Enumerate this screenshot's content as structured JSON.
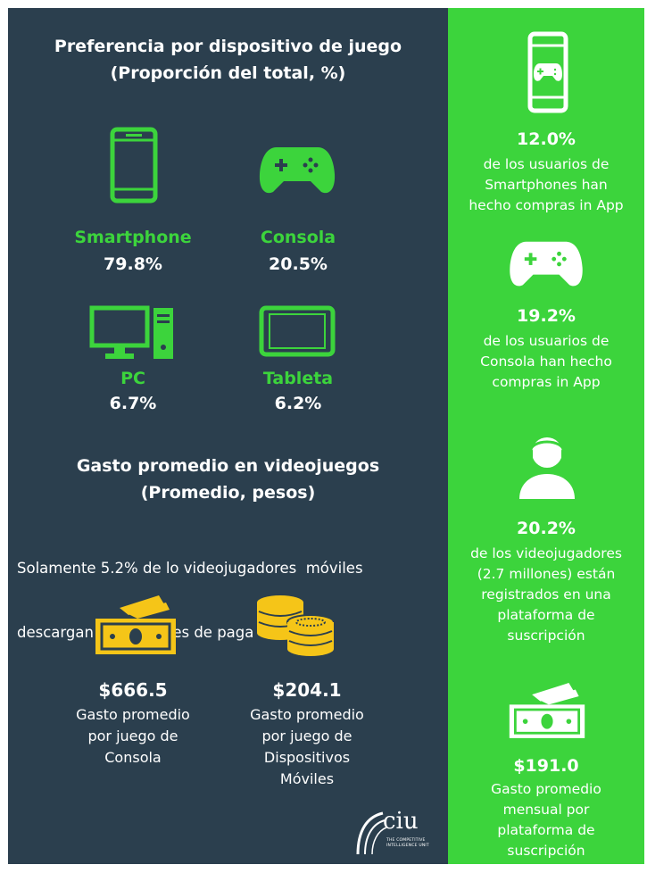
{
  "left": {
    "title_line1": "Preferencia por dispositivo de juego",
    "title_line2": "(Proporción del total, %)",
    "devices": [
      {
        "label": "Smartphone",
        "value": "79.8%",
        "icon": "smartphone-icon"
      },
      {
        "label": "Consola",
        "value": "20.5%",
        "icon": "gamepad-icon"
      },
      {
        "label": "PC",
        "value": "6.7%",
        "icon": "desktop-pc-icon"
      },
      {
        "label": "Tableta",
        "value": "6.2%",
        "icon": "tablet-icon"
      }
    ],
    "spend_title_line1": "Gasto promedio en videojuegos",
    "spend_title_line2": "(Promedio, pesos)",
    "note_line1": "Solamente 5.2% de lo videojugadores  móviles",
    "note_line2": "descargan aplicaciones de paga",
    "spend": [
      {
        "amount": "$666.5",
        "lines": [
          "Gasto promedio",
          "por juego de",
          "Consola"
        ],
        "icon": "cash-bills-icon"
      },
      {
        "amount": "$204.1",
        "lines": [
          "Gasto promedio",
          "por juego de",
          "Dispositivos",
          "Móviles"
        ],
        "icon": "coins-stack-icon"
      }
    ],
    "logo": {
      "text": "ciu",
      "tagline_line1": "THE COMPETITIVE",
      "tagline_line2": "INTELLIGENCE UNIT"
    }
  },
  "right": {
    "stats": [
      {
        "value": "12.0%",
        "lines": [
          "de los usuarios de",
          "Smartphones han",
          "hecho compras in App"
        ],
        "icon": "phone-gamepad-icon"
      },
      {
        "value": "19.2%",
        "lines": [
          "de los usuarios de",
          "Consola han hecho",
          "compras in App"
        ],
        "icon": "gamepad-icon"
      },
      {
        "value": "20.2%",
        "lines": [
          "de los videojugadores",
          "(2.7 millones) están",
          "registrados en una",
          "plataforma de",
          "suscripción"
        ],
        "icon": "headset-user-icon"
      },
      {
        "value": "$191.0",
        "lines": [
          "Gasto promedio",
          "mensual por",
          "plataforma de",
          "suscripción"
        ],
        "icon": "cash-bills-icon"
      }
    ]
  },
  "colors": {
    "left_bg": "#2b3f4e",
    "right_bg": "#3cd43c",
    "accent_green": "#3cd43c",
    "accent_yellow": "#f5c518",
    "text": "#ffffff"
  }
}
